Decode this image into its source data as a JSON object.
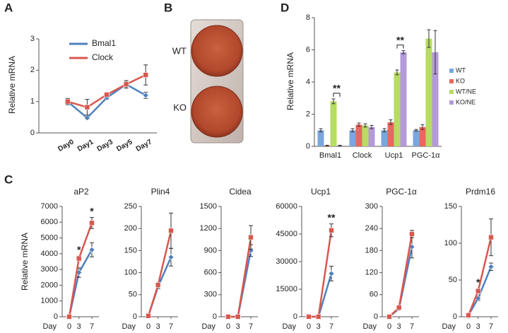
{
  "panel_labels": [
    "A",
    "B",
    "C",
    "D"
  ],
  "image": {
    "labels": [
      "WT",
      "KO"
    ]
  },
  "chart_data": [
    {
      "type": "line",
      "ylabel": "Relative mRNA",
      "categories": [
        "Day0",
        "Day1",
        "Day3",
        "Day5",
        "Day7"
      ],
      "ylim": [
        0,
        3
      ],
      "yticks": [
        0,
        1,
        2,
        3
      ],
      "series": [
        {
          "name": "Bmal1",
          "color": "#4f81bd",
          "values": [
            1.0,
            0.48,
            1.12,
            1.55,
            1.2
          ],
          "errors": [
            0.06,
            0.04,
            0.05,
            0.08,
            0.1
          ]
        },
        {
          "name": "Clock",
          "color": "#d9574f",
          "values": [
            1.0,
            0.82,
            1.22,
            1.55,
            1.85
          ],
          "errors": [
            0.1,
            0.25,
            0.05,
            0.12,
            0.32
          ]
        }
      ]
    },
    {
      "type": "bar",
      "ylabel": "Relative mRNA",
      "categories": [
        "Bmal1",
        "Clock",
        "Ucp1",
        "PGC-1α"
      ],
      "ylim": [
        0,
        8
      ],
      "yticks": [
        0,
        2,
        4,
        6,
        8
      ],
      "annotations": [
        "**",
        "**"
      ],
      "series": [
        {
          "name": "WT",
          "color": "#7aa6e0",
          "values": [
            1.0,
            1.0,
            1.0,
            1.0
          ],
          "errors": [
            0.1,
            0.1,
            0.1,
            0.05
          ]
        },
        {
          "name": "KO",
          "color": "#e8685f",
          "values": [
            0.05,
            1.35,
            1.5,
            1.2
          ],
          "errors": [
            0.02,
            0.1,
            0.15,
            0.15
          ]
        },
        {
          "name": "WT/NE",
          "color": "#b6dc63",
          "values": [
            2.8,
            1.3,
            4.6,
            6.7
          ],
          "errors": [
            0.15,
            0.1,
            0.15,
            0.55
          ]
        },
        {
          "name": "KO/NE",
          "color": "#b49ad8",
          "values": [
            0.05,
            1.2,
            5.85,
            5.85
          ],
          "errors": [
            0.02,
            0.1,
            0.1,
            1.35
          ]
        }
      ]
    },
    {
      "type": "line",
      "title": "aP2",
      "ylabel": "Relative mRNA",
      "xlabel": "Day",
      "x": [
        0,
        3,
        7
      ],
      "xlim": [
        0,
        7
      ],
      "xticks": [
        0,
        3,
        7
      ],
      "ylim": [
        0,
        7000
      ],
      "yticks": [
        0,
        1000,
        2000,
        3000,
        4000,
        5000,
        6000,
        7000
      ],
      "annotations": [
        "*",
        "*"
      ],
      "series": [
        {
          "color": "#4f81bd",
          "values": [
            0,
            2800,
            4250
          ],
          "errors": [
            0,
            300,
            450
          ]
        },
        {
          "color": "#d9574f",
          "values": [
            0,
            3700,
            5950
          ],
          "errors": [
            0,
            150,
            350
          ]
        }
      ]
    },
    {
      "type": "line",
      "title": "Plin4",
      "xlabel": "Day",
      "x": [
        0,
        3,
        7
      ],
      "xlim": [
        0,
        7
      ],
      "xticks": [
        0,
        3,
        7
      ],
      "ylim": [
        0,
        250
      ],
      "yticks": [
        0,
        50,
        100,
        150,
        200,
        250
      ],
      "series": [
        {
          "color": "#4f81bd",
          "values": [
            2,
            68,
            135
          ],
          "errors": [
            2,
            5,
            20
          ]
        },
        {
          "color": "#d9574f",
          "values": [
            2,
            72,
            195
          ],
          "errors": [
            2,
            5,
            40
          ]
        }
      ]
    },
    {
      "type": "line",
      "title": "Cidea",
      "xlabel": "Day",
      "x": [
        0,
        3,
        7
      ],
      "xlim": [
        0,
        7
      ],
      "xticks": [
        0,
        3,
        7
      ],
      "ylim": [
        0,
        1500
      ],
      "yticks": [
        0,
        300,
        600,
        900,
        1200,
        1500
      ],
      "series": [
        {
          "color": "#4f81bd",
          "values": [
            0,
            0,
            900
          ],
          "errors": [
            0,
            0,
            80
          ]
        },
        {
          "color": "#d9574f",
          "values": [
            0,
            0,
            1080
          ],
          "errors": [
            0,
            0,
            160
          ]
        }
      ]
    },
    {
      "type": "line",
      "title": "Ucp1",
      "xlabel": "Day",
      "x": [
        0,
        3,
        7
      ],
      "xlim": [
        0,
        7
      ],
      "xticks": [
        0,
        3,
        7
      ],
      "ylim": [
        0,
        60000
      ],
      "yticks": [
        0,
        15000,
        30000,
        45000,
        60000
      ],
      "annotations": [
        "**"
      ],
      "series": [
        {
          "color": "#4f81bd",
          "values": [
            0,
            0,
            23500
          ],
          "errors": [
            0,
            0,
            4000
          ]
        },
        {
          "color": "#d9574f",
          "values": [
            0,
            0,
            47000
          ],
          "errors": [
            0,
            0,
            3500
          ]
        }
      ]
    },
    {
      "type": "line",
      "title": "PGC-1α",
      "xlabel": "Day",
      "x": [
        0,
        3,
        7
      ],
      "xlim": [
        0,
        7
      ],
      "xticks": [
        0,
        3,
        7
      ],
      "ylim": [
        0,
        300
      ],
      "yticks": [
        0,
        60,
        120,
        180,
        240,
        300
      ],
      "series": [
        {
          "color": "#4f81bd",
          "values": [
            0,
            22,
            190
          ],
          "errors": [
            0,
            3,
            30
          ]
        },
        {
          "color": "#d9574f",
          "values": [
            0,
            25,
            225
          ],
          "errors": [
            0,
            3,
            10
          ]
        }
      ]
    },
    {
      "type": "line",
      "title": "Prdm16",
      "xlabel": "Day",
      "x": [
        0,
        3,
        7
      ],
      "xlim": [
        0,
        7
      ],
      "xticks": [
        0,
        3,
        7
      ],
      "ylim": [
        0,
        150
      ],
      "yticks": [
        0,
        50,
        100,
        150
      ],
      "annotations": [
        "*"
      ],
      "series": [
        {
          "color": "#4f81bd",
          "values": [
            2,
            25,
            68
          ],
          "errors": [
            1,
            3,
            5
          ]
        },
        {
          "color": "#d9574f",
          "values": [
            2,
            35,
            108
          ],
          "errors": [
            1,
            3,
            25
          ]
        }
      ]
    }
  ]
}
